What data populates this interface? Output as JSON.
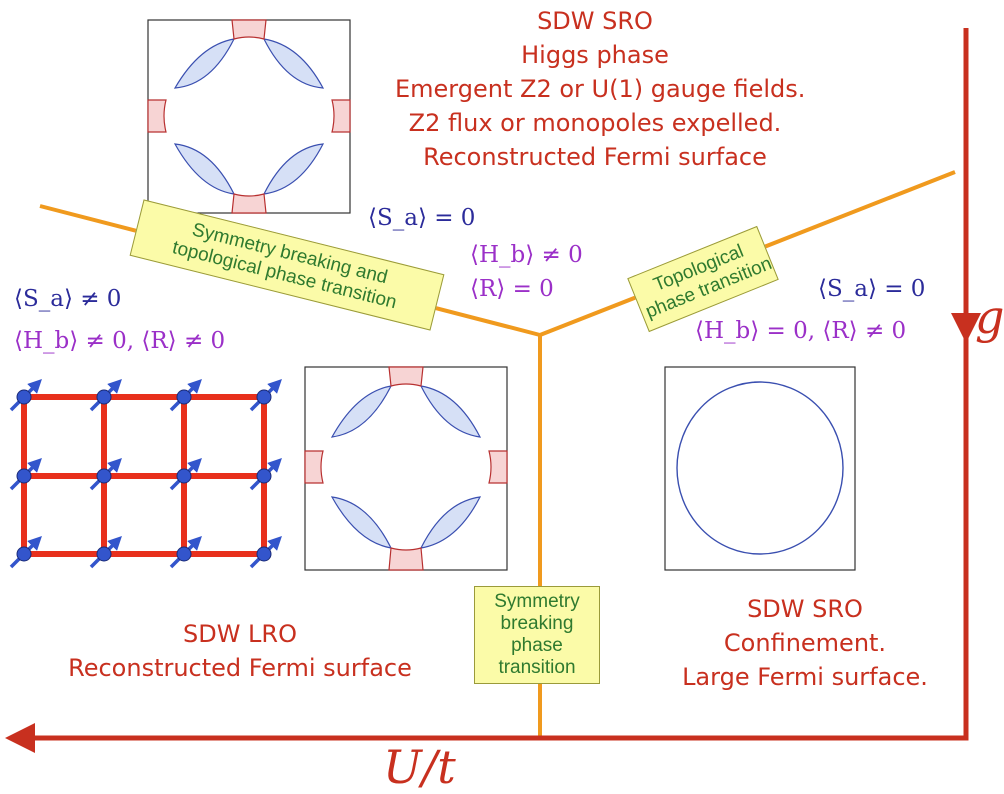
{
  "regions": {
    "top": {
      "lines": [
        "SDW SRO",
        "Higgs phase",
        "Emergent Z2 or U(1) gauge fields.",
        "Z2 flux or monopoles expelled.",
        "Reconstructed Fermi surface"
      ]
    },
    "left": {
      "lines": [
        "SDW LRO",
        "Reconstructed Fermi surface"
      ]
    },
    "right": {
      "lines": [
        "SDW SRO",
        "Confinement.",
        "Large Fermi surface."
      ]
    }
  },
  "math_labels": {
    "top_center": [
      "⟨S_a⟩ = 0",
      "⟨H_b⟩ ≠ 0",
      "⟨R⟩ = 0"
    ],
    "left": [
      "⟨S_a⟩ ≠ 0",
      "⟨H_b⟩ ≠ 0,   ⟨R⟩ ≠ 0"
    ],
    "right": [
      "⟨S_a⟩ = 0",
      "⟨H_b⟩ = 0,   ⟨R⟩ ≠ 0"
    ]
  },
  "transitions": {
    "left_upper": [
      "Symmetry breaking and",
      "topological phase transition"
    ],
    "right_upper": [
      "Topological",
      "phase transition"
    ],
    "vertical": [
      "Symmetry",
      "breaking",
      "phase",
      "transition"
    ]
  },
  "axes": {
    "vertical_label": "g",
    "horizontal_label": "U/t"
  },
  "colors": {
    "axis_arrow": "#c8301f",
    "boundary_line": "#f09a1e",
    "text_phase": "#c8301f",
    "math_blue": "#2b2b9a",
    "math_purple": "#9b30c8",
    "transition_box": "#fbfba8",
    "transition_text": "#2f7a2f",
    "fermi_pocket_hole": "#d6e0f6",
    "fermi_pocket_electron": "#f7d4d4",
    "lattice_bond": "#e8301c",
    "spin_site": "#3355cc",
    "spin_arrow": "#3355cc"
  },
  "icons": [
    "fermi-surface-reconstructed",
    "fermi-surface-large",
    "spin-lattice-antiferromagnet"
  ]
}
